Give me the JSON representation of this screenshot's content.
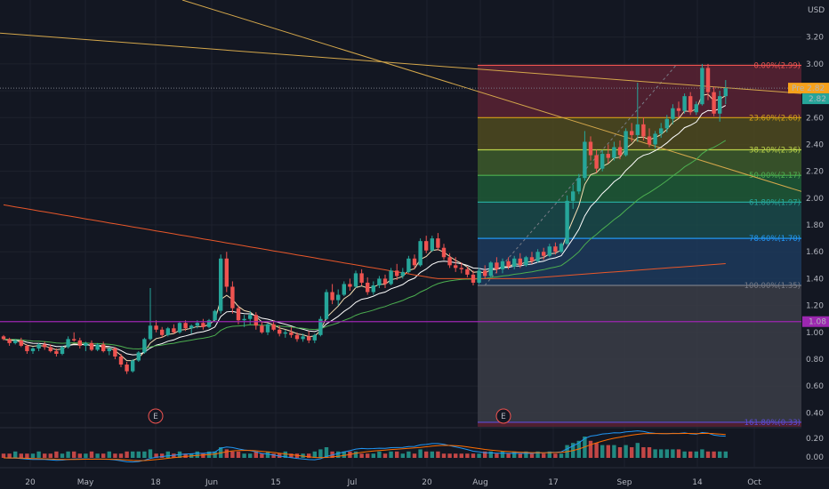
{
  "chart_data": [
    {
      "type": "candlestick",
      "price_axis": {
        "currency_label": "USD",
        "ticks": [
          0.4,
          0.6,
          0.8,
          1.0,
          1.2,
          1.4,
          1.6,
          1.8,
          2.0,
          2.2,
          2.4,
          2.6,
          2.8,
          3.0,
          3.2
        ],
        "ylim": [
          0.27,
          3.45
        ],
        "tick_labels": [
          "0.40",
          "0.60",
          "0.80",
          "1.00",
          "1.20",
          "1.40",
          "1.60",
          "1.80",
          "2.00",
          "2.20",
          "2.40",
          "2.60",
          "2.80",
          "3.00",
          "3.20"
        ]
      },
      "time_axis": {
        "labels": [
          "20",
          "May",
          "18",
          "Jun",
          "15",
          "Jul",
          "20",
          "Aug",
          "17",
          "Sep",
          "14",
          "Oct"
        ]
      },
      "current_price": {
        "label": "2.82",
        "tag": "Pre",
        "pre_value": "2.82",
        "color": "#f7a21b"
      },
      "horizontal_level": {
        "value": 1.08,
        "label": "1.08",
        "color": "#9c27b0"
      },
      "fibonacci": {
        "levels": [
          {
            "ratio": "0.00%",
            "price": 2.99,
            "label": "0.00%(2.99)",
            "color": "#ef5350"
          },
          {
            "ratio": "23.60%",
            "price": 2.6,
            "label": "23.60%(2.60)",
            "color": "#d4a017"
          },
          {
            "ratio": "38.20%",
            "price": 2.36,
            "label": "38.20%(2.36)",
            "color": "#b9d24a"
          },
          {
            "ratio": "50.00%",
            "price": 2.17,
            "label": "50.00%(2.17)",
            "color": "#4caf50"
          },
          {
            "ratio": "61.80%",
            "price": 1.97,
            "label": "61.80%(1.97)",
            "color": "#26a69a"
          },
          {
            "ratio": "78.60%",
            "price": 1.7,
            "label": "78.60%(1.70)",
            "color": "#2196f3"
          },
          {
            "ratio": "100.00%",
            "price": 1.35,
            "label": "100.00%(1.35)",
            "color": "#787b86"
          },
          {
            "ratio": "161.80%",
            "price": 0.33,
            "label": "161.80%(0.33)",
            "color": "#5c4cd6"
          }
        ],
        "zone_colors": [
          "#5b2233",
          "#4f4a1f",
          "#3d5a2a",
          "#1e5a36",
          "#1a4a4a",
          "#1d3a5c",
          "#3b3d47",
          "#27297a"
        ]
      },
      "earnings_markers": [
        "E",
        "E"
      ],
      "ohlc": [
        [
          0.97,
          0.98,
          0.94,
          0.95
        ],
        [
          0.95,
          0.96,
          0.9,
          0.92
        ],
        [
          0.92,
          0.95,
          0.91,
          0.94
        ],
        [
          0.94,
          0.96,
          0.89,
          0.9
        ],
        [
          0.9,
          0.91,
          0.84,
          0.86
        ],
        [
          0.86,
          0.89,
          0.84,
          0.88
        ],
        [
          0.88,
          0.92,
          0.86,
          0.91
        ],
        [
          0.91,
          0.93,
          0.87,
          0.89
        ],
        [
          0.89,
          0.91,
          0.85,
          0.86
        ],
        [
          0.86,
          0.88,
          0.82,
          0.84
        ],
        [
          0.84,
          0.9,
          0.83,
          0.89
        ],
        [
          0.89,
          0.97,
          0.88,
          0.95
        ],
        [
          0.95,
          1.0,
          0.93,
          0.94
        ],
        [
          0.94,
          0.96,
          0.88,
          0.9
        ],
        [
          0.9,
          0.93,
          0.86,
          0.92
        ],
        [
          0.92,
          0.94,
          0.86,
          0.87
        ],
        [
          0.87,
          0.92,
          0.86,
          0.91
        ],
        [
          0.91,
          0.93,
          0.85,
          0.86
        ],
        [
          0.86,
          0.89,
          0.83,
          0.88
        ],
        [
          0.88,
          0.89,
          0.8,
          0.82
        ],
        [
          0.82,
          0.84,
          0.74,
          0.76
        ],
        [
          0.76,
          0.78,
          0.69,
          0.71
        ],
        [
          0.71,
          0.8,
          0.7,
          0.79
        ],
        [
          0.79,
          0.86,
          0.78,
          0.85
        ],
        [
          0.85,
          0.96,
          0.84,
          0.95
        ],
        [
          0.95,
          1.33,
          0.94,
          1.05
        ],
        [
          1.05,
          1.09,
          1.0,
          1.02
        ],
        [
          1.02,
          1.04,
          0.96,
          0.98
        ],
        [
          0.98,
          1.04,
          0.97,
          1.03
        ],
        [
          1.03,
          1.06,
          0.99,
          1.0
        ],
        [
          1.0,
          1.08,
          0.99,
          1.07
        ],
        [
          1.07,
          1.09,
          1.01,
          1.03
        ],
        [
          1.03,
          1.06,
          0.99,
          1.05
        ],
        [
          1.05,
          1.09,
          1.03,
          1.07
        ],
        [
          1.07,
          1.1,
          1.02,
          1.04
        ],
        [
          1.04,
          1.1,
          1.03,
          1.09
        ],
        [
          1.09,
          1.17,
          1.08,
          1.16
        ],
        [
          1.16,
          1.58,
          1.14,
          1.55
        ],
        [
          1.55,
          1.6,
          1.3,
          1.34
        ],
        [
          1.34,
          1.38,
          1.14,
          1.18
        ],
        [
          1.18,
          1.2,
          1.06,
          1.09
        ],
        [
          1.09,
          1.13,
          1.04,
          1.1
        ],
        [
          1.1,
          1.16,
          1.06,
          1.13
        ],
        [
          1.13,
          1.15,
          1.02,
          1.05
        ],
        [
          1.05,
          1.08,
          0.99,
          1.0
        ],
        [
          1.0,
          1.07,
          0.98,
          1.06
        ],
        [
          1.06,
          1.09,
          1.01,
          1.02
        ],
        [
          1.02,
          1.05,
          0.97,
          0.99
        ],
        [
          0.99,
          1.02,
          0.96,
          1.0
        ],
        [
          1.0,
          1.04,
          0.96,
          0.98
        ],
        [
          0.98,
          1.0,
          0.93,
          0.95
        ],
        [
          0.95,
          0.99,
          0.93,
          0.97
        ],
        [
          0.97,
          1.01,
          0.92,
          0.94
        ],
        [
          0.94,
          0.99,
          0.92,
          0.98
        ],
        [
          0.98,
          1.12,
          0.97,
          1.1
        ],
        [
          1.1,
          1.32,
          1.09,
          1.3
        ],
        [
          1.3,
          1.36,
          1.21,
          1.24
        ],
        [
          1.24,
          1.32,
          1.2,
          1.28
        ],
        [
          1.28,
          1.38,
          1.27,
          1.36
        ],
        [
          1.36,
          1.4,
          1.31,
          1.34
        ],
        [
          1.34,
          1.46,
          1.33,
          1.44
        ],
        [
          1.44,
          1.47,
          1.35,
          1.37
        ],
        [
          1.37,
          1.41,
          1.28,
          1.3
        ],
        [
          1.3,
          1.38,
          1.28,
          1.35
        ],
        [
          1.35,
          1.42,
          1.33,
          1.4
        ],
        [
          1.4,
          1.43,
          1.33,
          1.36
        ],
        [
          1.36,
          1.48,
          1.35,
          1.46
        ],
        [
          1.46,
          1.51,
          1.39,
          1.42
        ],
        [
          1.42,
          1.48,
          1.4,
          1.45
        ],
        [
          1.45,
          1.57,
          1.44,
          1.55
        ],
        [
          1.55,
          1.58,
          1.47,
          1.5
        ],
        [
          1.5,
          1.7,
          1.49,
          1.68
        ],
        [
          1.68,
          1.72,
          1.59,
          1.61
        ],
        [
          1.61,
          1.72,
          1.6,
          1.7
        ],
        [
          1.7,
          1.74,
          1.61,
          1.63
        ],
        [
          1.63,
          1.66,
          1.54,
          1.56
        ],
        [
          1.56,
          1.59,
          1.48,
          1.5
        ],
        [
          1.5,
          1.56,
          1.45,
          1.48
        ],
        [
          1.48,
          1.52,
          1.44,
          1.47
        ],
        [
          1.47,
          1.49,
          1.41,
          1.43
        ],
        [
          1.43,
          1.46,
          1.35,
          1.37
        ],
        [
          1.37,
          1.48,
          1.36,
          1.46
        ],
        [
          1.46,
          1.5,
          1.4,
          1.42
        ],
        [
          1.42,
          1.53,
          1.41,
          1.52
        ],
        [
          1.52,
          1.56,
          1.44,
          1.47
        ],
        [
          1.47,
          1.55,
          1.44,
          1.53
        ],
        [
          1.53,
          1.56,
          1.47,
          1.49
        ],
        [
          1.49,
          1.57,
          1.47,
          1.55
        ],
        [
          1.55,
          1.59,
          1.48,
          1.5
        ],
        [
          1.5,
          1.57,
          1.49,
          1.56
        ],
        [
          1.56,
          1.6,
          1.51,
          1.53
        ],
        [
          1.53,
          1.62,
          1.52,
          1.6
        ],
        [
          1.6,
          1.63,
          1.54,
          1.57
        ],
        [
          1.57,
          1.66,
          1.56,
          1.64
        ],
        [
          1.64,
          1.67,
          1.58,
          1.6
        ],
        [
          1.6,
          1.67,
          1.59,
          1.66
        ],
        [
          1.66,
          2.02,
          1.65,
          1.98
        ],
        [
          1.98,
          2.1,
          1.92,
          2.05
        ],
        [
          2.05,
          2.18,
          2.03,
          2.15
        ],
        [
          2.15,
          2.5,
          2.13,
          2.42
        ],
        [
          2.42,
          2.46,
          2.28,
          2.32
        ],
        [
          2.32,
          2.36,
          2.19,
          2.22
        ],
        [
          2.22,
          2.36,
          2.2,
          2.33
        ],
        [
          2.33,
          2.4,
          2.26,
          2.3
        ],
        [
          2.3,
          2.42,
          2.28,
          2.38
        ],
        [
          2.38,
          2.43,
          2.29,
          2.32
        ],
        [
          2.32,
          2.52,
          2.31,
          2.5
        ],
        [
          2.5,
          2.56,
          2.42,
          2.47
        ],
        [
          2.47,
          2.86,
          2.42,
          2.55
        ],
        [
          2.55,
          2.6,
          2.43,
          2.46
        ],
        [
          2.46,
          2.52,
          2.38,
          2.4
        ],
        [
          2.4,
          2.5,
          2.37,
          2.48
        ],
        [
          2.48,
          2.56,
          2.45,
          2.52
        ],
        [
          2.52,
          2.62,
          2.49,
          2.59
        ],
        [
          2.59,
          2.7,
          2.55,
          2.67
        ],
        [
          2.67,
          2.72,
          2.6,
          2.65
        ],
        [
          2.65,
          2.78,
          2.63,
          2.76
        ],
        [
          2.76,
          2.79,
          2.62,
          2.64
        ],
        [
          2.64,
          2.72,
          2.62,
          2.7
        ],
        [
          2.7,
          3.0,
          2.69,
          2.97
        ],
        [
          2.97,
          3.0,
          2.73,
          2.79
        ],
        [
          2.79,
          2.83,
          2.61,
          2.63
        ],
        [
          2.63,
          2.8,
          2.57,
          2.76
        ],
        [
          2.76,
          2.88,
          2.7,
          2.82
        ]
      ],
      "volume": [
        2,
        2,
        3,
        2,
        2,
        2,
        3,
        2,
        2,
        3,
        2,
        3,
        3,
        2,
        2,
        3,
        2,
        2,
        3,
        2,
        2,
        3,
        3,
        3,
        3,
        4,
        2,
        2,
        3,
        2,
        3,
        2,
        2,
        3,
        2,
        3,
        3,
        5,
        4,
        3,
        3,
        2,
        2,
        3,
        2,
        3,
        2,
        2,
        3,
        2,
        2,
        2,
        2,
        3,
        4,
        5,
        3,
        3,
        3,
        3,
        3,
        2,
        2,
        2,
        3,
        2,
        3,
        3,
        2,
        3,
        2,
        4,
        3,
        3,
        3,
        2,
        2,
        2,
        2,
        2,
        2,
        2,
        3,
        3,
        2,
        3,
        2,
        3,
        2,
        3,
        2,
        3,
        2,
        3,
        2,
        2,
        6,
        7,
        8,
        10,
        8,
        7,
        6,
        6,
        6,
        5,
        6,
        5,
        7,
        5,
        5,
        4,
        4,
        4,
        4,
        4,
        3,
        3,
        3,
        4,
        3,
        3,
        3,
        3
      ],
      "volume_axis": {
        "tick_labels": [
          "0.20",
          "0.00"
        ]
      }
    }
  ]
}
